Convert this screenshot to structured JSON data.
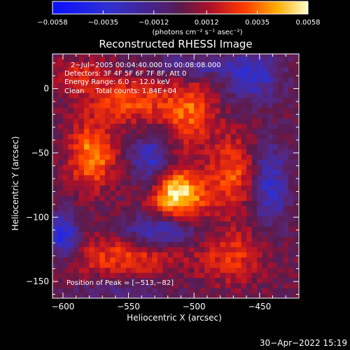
{
  "chart_data": {
    "type": "heatmap",
    "title": "Reconstructed RHESSI Image",
    "xlabel": "Heliocentric X (arcsec)",
    "ylabel": "Heliocentric Y (arcsec)",
    "xlim": [
      -608,
      -420
    ],
    "ylim": [
      -163,
      27
    ],
    "x_ticks": [
      -600,
      -550,
      -500,
      -450
    ],
    "x_tick_labels": [
      "−600",
      "−550",
      "−500",
      "−450"
    ],
    "y_ticks": [
      0,
      -50,
      -100,
      -150
    ],
    "y_tick_labels": [
      "0",
      "−50",
      "−100",
      "−150"
    ],
    "colorbar": {
      "range": [
        -0.0058,
        0.0058
      ],
      "ticks": [
        -0.0058,
        -0.0035,
        -0.0012,
        0.0012,
        0.0035,
        0.0058
      ],
      "tick_labels": [
        "−0.0058",
        "−0.0035",
        "−0.0012",
        "0.0012",
        "0.0035",
        "0.0058"
      ],
      "unit_label": "(photons cm⁻² s⁻¹ asec⁻²)"
    },
    "annotations": {
      "time_range": "2−Jul−2005 00:04:40.000 to 00:08:08.000",
      "detectors": "Detectors: 3F 4F 5F 6F 7F 8F, Att 0",
      "energy": "Energy Range: 6.0 − 12.0 keV",
      "clean_total": "Clean     Total counts: 1.84E+04",
      "peak": "Position of Peak = [−513,−82]"
    },
    "peak": {
      "x": -513,
      "y": -82
    },
    "sources": [
      {
        "x": -513,
        "y": -82,
        "sx": 16,
        "sy": 14,
        "amp": 0.0056
      },
      {
        "x": -578,
        "y": -52,
        "sx": 12,
        "sy": 18,
        "amp": 0.004
      },
      {
        "x": -548,
        "y": -10,
        "sx": 22,
        "sy": 12,
        "amp": 0.003
      },
      {
        "x": -503,
        "y": -20,
        "sx": 14,
        "sy": 18,
        "amp": 0.0032
      },
      {
        "x": -470,
        "y": -65,
        "sx": 12,
        "sy": 20,
        "amp": 0.003
      },
      {
        "x": -555,
        "y": -130,
        "sx": 30,
        "sy": 15,
        "amp": 0.0027
      },
      {
        "x": -470,
        "y": -130,
        "sx": 18,
        "sy": 15,
        "amp": 0.0024
      },
      {
        "x": -585,
        "y": 10,
        "sx": 15,
        "sy": 10,
        "amp": 0.002
      },
      {
        "x": -600,
        "y": -115,
        "sx": 10,
        "sy": 12,
        "amp": -0.004
      },
      {
        "x": -532,
        "y": -58,
        "sx": 10,
        "sy": 16,
        "amp": -0.0032
      },
      {
        "x": -442,
        "y": -75,
        "sx": 10,
        "sy": 22,
        "amp": -0.003
      },
      {
        "x": -528,
        "y": -110,
        "sx": 22,
        "sy": 9,
        "amp": -0.0036
      },
      {
        "x": -455,
        "y": 10,
        "sx": 15,
        "sy": 14,
        "amp": -0.003
      },
      {
        "x": -500,
        "y": 18,
        "sx": 20,
        "sy": 7,
        "amp": -0.0022
      },
      {
        "x": -555,
        "y": -155,
        "sx": 25,
        "sy": 8,
        "amp": -0.0018
      }
    ]
  },
  "footer": {
    "date": "30−Apr−2022 15:19"
  }
}
